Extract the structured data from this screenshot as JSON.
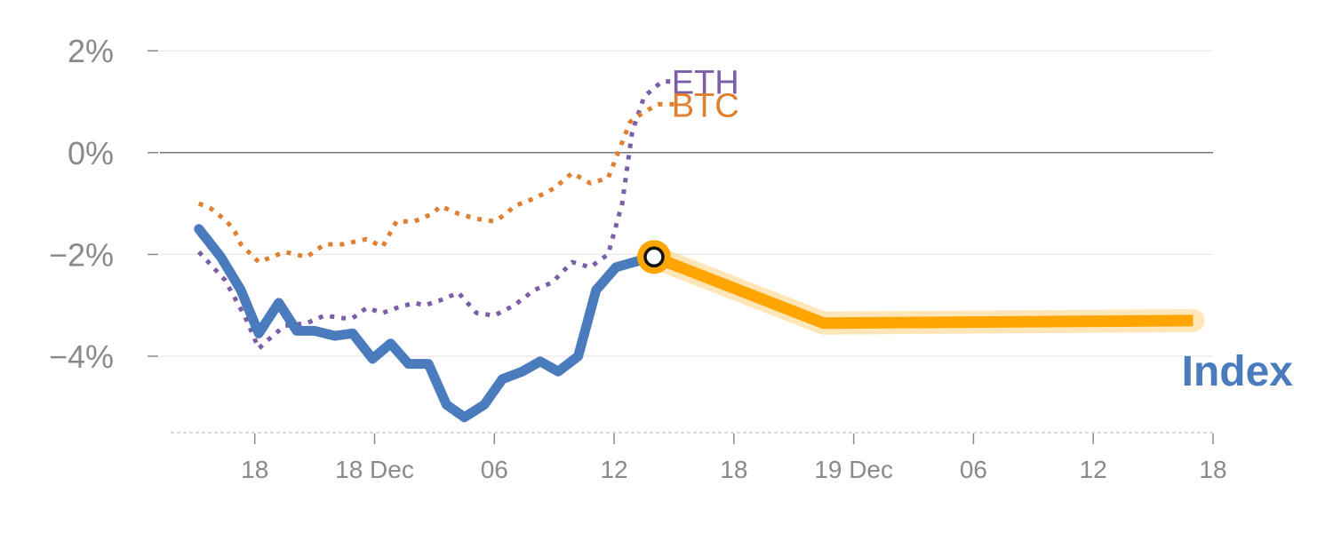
{
  "chart_data": {
    "type": "line",
    "title": "",
    "xlabel": "",
    "ylabel": "",
    "x_ticks": [
      {
        "hour": 18,
        "label": "18"
      },
      {
        "hour": 24,
        "label": "18 Dec"
      },
      {
        "hour": 30,
        "label": "06"
      },
      {
        "hour": 36,
        "label": "12"
      },
      {
        "hour": 42,
        "label": "18"
      },
      {
        "hour": 48,
        "label": "19 Dec"
      },
      {
        "hour": 54,
        "label": "06"
      },
      {
        "hour": 60,
        "label": "12"
      },
      {
        "hour": 66,
        "label": "18"
      }
    ],
    "xlim": [
      13.25,
      66
    ],
    "y_ticks": [
      {
        "value": 2,
        "label": "2%"
      },
      {
        "value": 0,
        "label": "0%"
      },
      {
        "value": -2,
        "label": "−2%"
      },
      {
        "value": -4,
        "label": "−4%"
      }
    ],
    "ylim": [
      -5.5,
      2.3
    ],
    "zero_line": 0,
    "grid": true,
    "series": [
      {
        "name": "ETH",
        "label": "ETH",
        "color": "#7b5ea7",
        "style": "dotted",
        "points": [
          [
            15.2,
            -1.95
          ],
          [
            16.5,
            -2.5
          ],
          [
            17.2,
            -3.0
          ],
          [
            17.6,
            -3.3
          ],
          [
            18.2,
            -3.85
          ],
          [
            18.6,
            -3.7
          ],
          [
            19.5,
            -3.4
          ],
          [
            20.6,
            -3.35
          ],
          [
            21.5,
            -3.2
          ],
          [
            22.4,
            -3.25
          ],
          [
            22.9,
            -3.25
          ],
          [
            23.6,
            -3.05
          ],
          [
            24.4,
            -3.15
          ],
          [
            25.1,
            -3.05
          ],
          [
            26.0,
            -2.95
          ],
          [
            26.5,
            -3.0
          ],
          [
            27.3,
            -2.9
          ],
          [
            28.2,
            -2.75
          ],
          [
            29.1,
            -3.15
          ],
          [
            30.0,
            -3.2
          ],
          [
            31.0,
            -3.0
          ],
          [
            32.0,
            -2.7
          ],
          [
            32.9,
            -2.55
          ],
          [
            33.9,
            -2.15
          ],
          [
            34.8,
            -2.25
          ],
          [
            35.7,
            -2.0
          ],
          [
            36.4,
            -1.0
          ],
          [
            36.9,
            0.4
          ],
          [
            37.5,
            1.1
          ],
          [
            38.4,
            1.4
          ],
          [
            39.1,
            1.4
          ]
        ]
      },
      {
        "name": "BTC",
        "label": "BTC",
        "color": "#e07f2f",
        "style": "dotted",
        "points": [
          [
            15.2,
            -1.0
          ],
          [
            15.8,
            -1.1
          ],
          [
            16.6,
            -1.35
          ],
          [
            17.0,
            -1.55
          ],
          [
            17.3,
            -1.8
          ],
          [
            18.2,
            -2.15
          ],
          [
            19.5,
            -1.95
          ],
          [
            20.6,
            -2.05
          ],
          [
            21.5,
            -1.8
          ],
          [
            22.4,
            -1.8
          ],
          [
            23.6,
            -1.7
          ],
          [
            24.4,
            -1.85
          ],
          [
            25.1,
            -1.35
          ],
          [
            26.0,
            -1.35
          ],
          [
            26.9,
            -1.2
          ],
          [
            27.3,
            -1.05
          ],
          [
            28.2,
            -1.2
          ],
          [
            29.1,
            -1.3
          ],
          [
            30.0,
            -1.35
          ],
          [
            30.6,
            -1.2
          ],
          [
            31.0,
            -1.05
          ],
          [
            32.0,
            -0.9
          ],
          [
            33.0,
            -0.7
          ],
          [
            33.9,
            -0.4
          ],
          [
            34.8,
            -0.6
          ],
          [
            35.7,
            -0.5
          ],
          [
            36.4,
            0.2
          ],
          [
            36.8,
            0.6
          ],
          [
            37.5,
            0.8
          ],
          [
            38.2,
            0.95
          ],
          [
            39.1,
            0.95
          ]
        ]
      },
      {
        "name": "Index",
        "label": "Index",
        "color": "#4a7bbd",
        "style": "solid",
        "points": [
          [
            15.2,
            -1.5
          ],
          [
            16.3,
            -2.05
          ],
          [
            17.3,
            -2.7
          ],
          [
            18.2,
            -3.55
          ],
          [
            19.2,
            -2.95
          ],
          [
            20.1,
            -3.5
          ],
          [
            21.0,
            -3.5
          ],
          [
            22.0,
            -3.6
          ],
          [
            22.9,
            -3.55
          ],
          [
            23.9,
            -4.05
          ],
          [
            24.8,
            -3.75
          ],
          [
            25.7,
            -4.15
          ],
          [
            26.7,
            -4.15
          ],
          [
            27.6,
            -4.95
          ],
          [
            28.5,
            -5.2
          ],
          [
            29.5,
            -4.95
          ],
          [
            30.4,
            -4.45
          ],
          [
            31.4,
            -4.3
          ],
          [
            32.3,
            -4.1
          ],
          [
            33.2,
            -4.3
          ],
          [
            34.2,
            -4.0
          ],
          [
            35.1,
            -2.7
          ],
          [
            36.1,
            -2.25
          ],
          [
            37.0,
            -2.15
          ],
          [
            38.0,
            -2.05
          ]
        ]
      }
    ],
    "forecast": {
      "color": "#ffa500",
      "points": [
        [
          38.0,
          -2.05
        ],
        [
          46.5,
          -3.35
        ],
        [
          65.0,
          -3.3
        ]
      ]
    },
    "marker": {
      "x": 38.0,
      "y": -2.05,
      "fill": "#ffffff",
      "stroke": "#111111",
      "halo": "#ffa500"
    }
  }
}
